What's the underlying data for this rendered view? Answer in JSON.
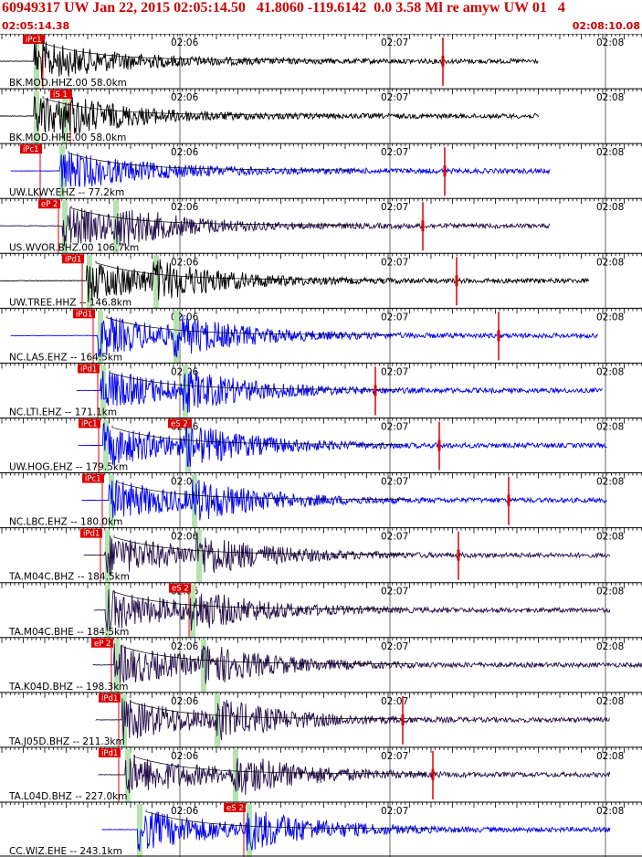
{
  "header": {
    "title": "60949317 UW Jan 22, 2015 02:05:14.50   41.8060 -119.6142  0.0 3.58 Ml re amyw UW 01   4",
    "start_time": "02:05:14.38",
    "end_time": "02:08:10.08"
  },
  "time_marks": [
    "02:06",
    "02:07",
    "02:08"
  ],
  "colors": {
    "pick": "#dd0000",
    "green_band": "#b6e3b0",
    "blue": "#0000ee",
    "dark": "#1a0c3a",
    "black": "#000000",
    "red_trace": "#cc0000"
  },
  "traces": [
    {
      "label": "BK.MOD.HHZ.00 58.0km",
      "pick": "iPc1",
      "color": "black"
    },
    {
      "label": "BK.MOD.HHE.00 58.0km",
      "pick": "iS 1",
      "color": "black"
    },
    {
      "label": "UW.LKWY.EHZ -- 77.2km",
      "pick": "iPc1",
      "color": "blue"
    },
    {
      "label": "US.WVOR.BHZ.00 106.7km",
      "pick": "eP 2",
      "color": "dark"
    },
    {
      "label": "UW.TREE.HHZ -- 146.8km",
      "pick": "iPd1",
      "color": "black"
    },
    {
      "label": "NC.LAS.EHZ -- 164.5km",
      "pick": "iPd1",
      "color": "blue"
    },
    {
      "label": "NC.LTI.EHZ -- 171.1km",
      "pick": "iPd1",
      "color": "blue"
    },
    {
      "label": "UW.HOG.EHZ -- 179.5km",
      "pick": "iPc1",
      "pick2": "eS 2",
      "color": "blue"
    },
    {
      "label": "NC.LBC.EHZ -- 180.0km",
      "pick": "iPc1",
      "color": "blue"
    },
    {
      "label": "TA.M04C.BHZ -- 184.5km",
      "pick": "iPd1",
      "color": "dark"
    },
    {
      "label": "TA.M04C.BHE -- 184.5km",
      "pick": "eS 2",
      "color": "dark"
    },
    {
      "label": "TA.K04D.BHZ -- 198.3km",
      "pick": "eP 2",
      "color": "dark"
    },
    {
      "label": "TA.J05D.BHZ -- 211.3km",
      "pick": "iPd1",
      "color": "dark"
    },
    {
      "label": "TA.L04D.BHZ -- 227.0km",
      "pick": "iPd1",
      "color": "dark"
    },
    {
      "label": "CC.WIZ.EHE -- 243.1km",
      "pick": "eS 2",
      "color": "blue"
    }
  ]
}
